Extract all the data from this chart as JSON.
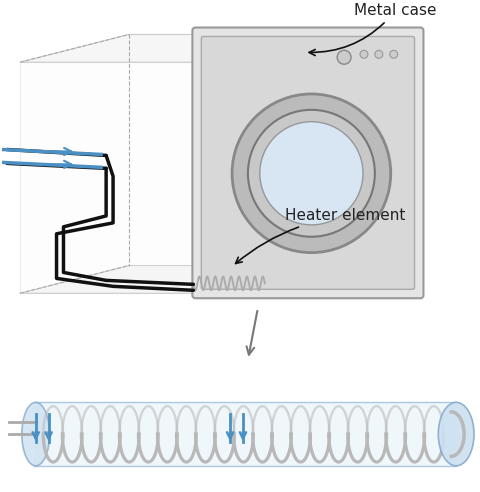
{
  "bg_color": "#ffffff",
  "label_metal_case": "Metal case",
  "label_heater_element": "Heater element",
  "arrow_color": "#4a90c4",
  "coil_color": "#b8b8b8",
  "cylinder_color": "#cce8f0",
  "wire_color": "#555555",
  "annotation_color": "#222222",
  "figsize": [
    4.8,
    4.92
  ],
  "dpi": 100
}
